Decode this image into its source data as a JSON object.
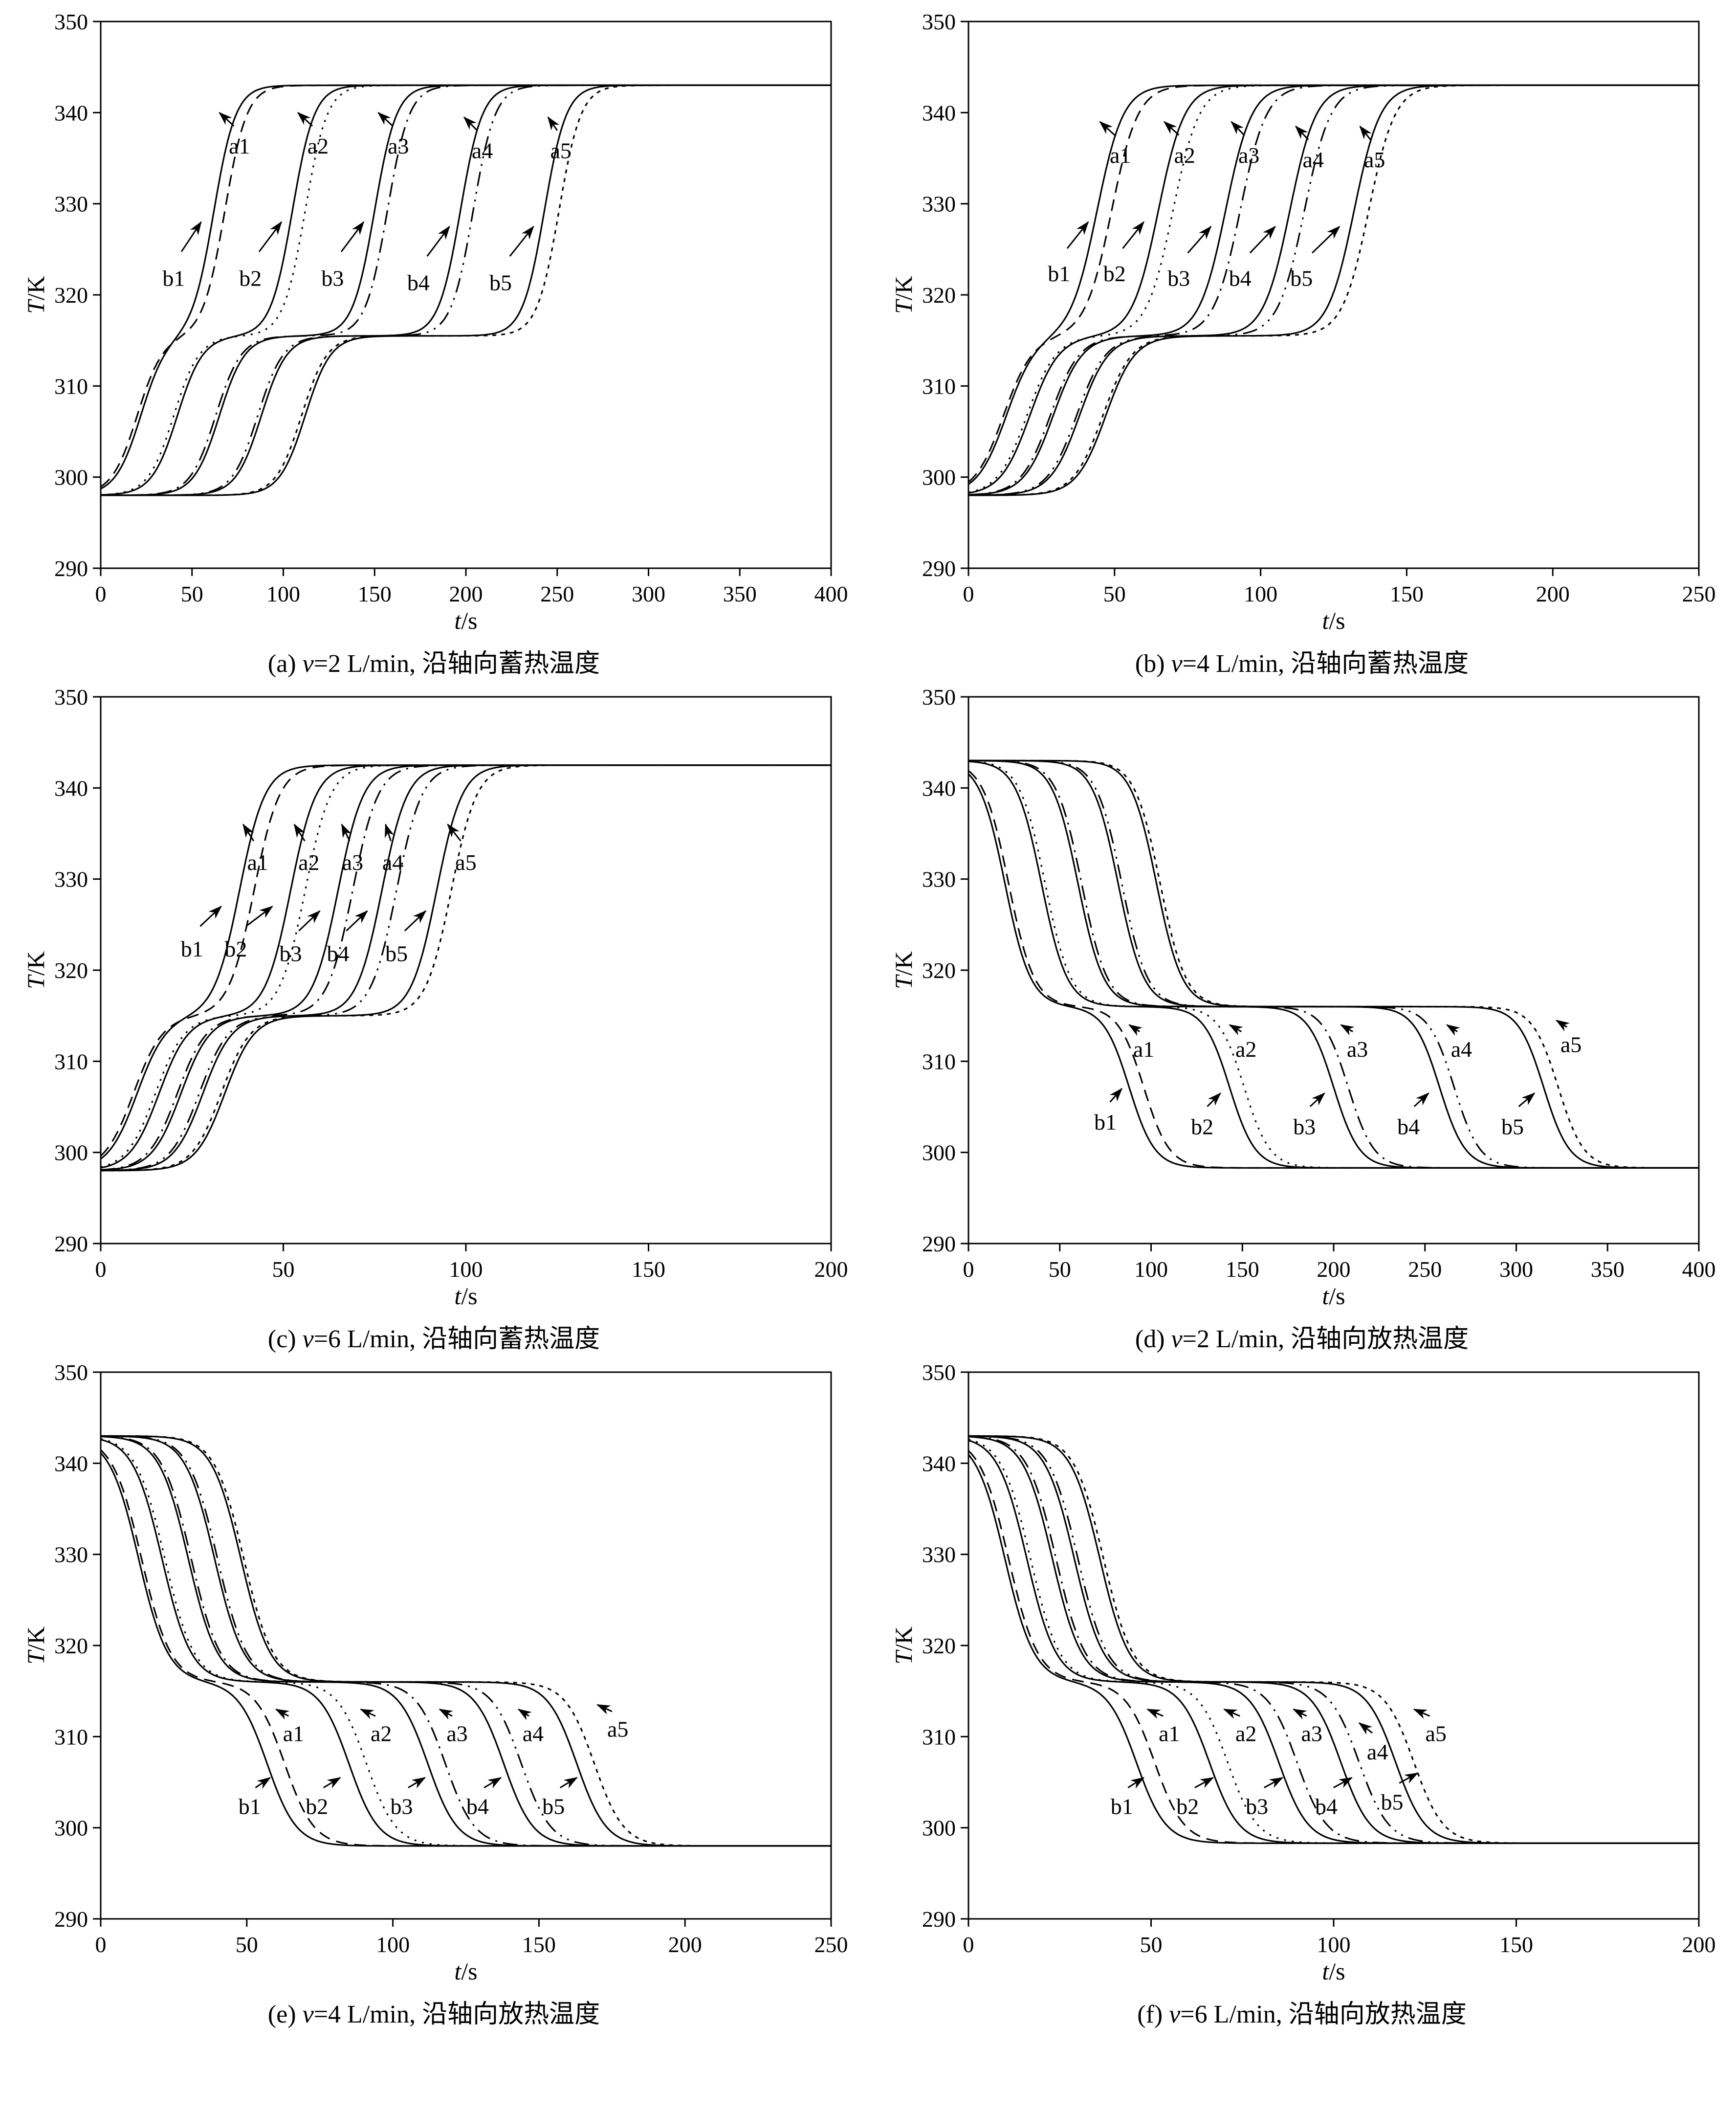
{
  "figure": {
    "background": "#ffffff",
    "line_color": "#000000"
  },
  "chart_data": [
    {
      "type": "line",
      "id": "a",
      "caption_label": "(a) ",
      "caption_var": "v",
      "caption_rest": "=2 L/min, 沿轴向蓄热温度",
      "xlabel_var": "t",
      "xlabel_unit": "/s",
      "ylabel_var": "T",
      "ylabel_unit": "/K",
      "xlim": [
        0,
        400
      ],
      "xstep": 50,
      "ylim": [
        290,
        350
      ],
      "ystep": 10,
      "mode": "charge",
      "levels": {
        "base": 298,
        "plateau": 315.5,
        "top": 343
      },
      "w1": 7,
      "w2": 6,
      "curves": [
        {
          "name": "a1",
          "c1": 22,
          "c2": 62,
          "dash": ""
        },
        {
          "name": "b1",
          "c1": 20,
          "c2": 68,
          "dash": "24 14"
        },
        {
          "name": "a2",
          "c1": 42,
          "c2": 105,
          "dash": ""
        },
        {
          "name": "b2",
          "c1": 40,
          "c2": 112,
          "dash": "4 12"
        },
        {
          "name": "a3",
          "c1": 65,
          "c2": 150,
          "dash": ""
        },
        {
          "name": "b3",
          "c1": 63,
          "c2": 157,
          "dash": "30 12 4 12"
        },
        {
          "name": "a4",
          "c1": 88,
          "c2": 197,
          "dash": ""
        },
        {
          "name": "b4",
          "c1": 86,
          "c2": 204,
          "dash": "30 12 4 12 4 12"
        },
        {
          "name": "a5",
          "c1": 112,
          "c2": 243,
          "dash": ""
        },
        {
          "name": "b5",
          "c1": 110,
          "c2": 251,
          "dash": "8 10"
        }
      ],
      "annotations": [
        {
          "text": "a1",
          "lx": 76,
          "ly": 335.5,
          "tx": 65,
          "ty": 340
        },
        {
          "text": "a2",
          "lx": 119,
          "ly": 335.5,
          "tx": 108,
          "ty": 340
        },
        {
          "text": "a3",
          "lx": 163,
          "ly": 335.5,
          "tx": 152,
          "ty": 340
        },
        {
          "text": "a4",
          "lx": 209,
          "ly": 335,
          "tx": 199,
          "ty": 339.5
        },
        {
          "text": "a5",
          "lx": 252,
          "ly": 335,
          "tx": 245,
          "ty": 339.5
        },
        {
          "text": "b1",
          "lx": 40,
          "ly": 321,
          "tx": 55,
          "ty": 328
        },
        {
          "text": "b2",
          "lx": 82,
          "ly": 321,
          "tx": 99,
          "ty": 328
        },
        {
          "text": "b3",
          "lx": 127,
          "ly": 321,
          "tx": 144,
          "ty": 328
        },
        {
          "text": "b4",
          "lx": 174,
          "ly": 320.5,
          "tx": 191,
          "ty": 327.5
        },
        {
          "text": "b5",
          "lx": 219,
          "ly": 320.5,
          "tx": 237,
          "ty": 327.5
        }
      ]
    },
    {
      "type": "line",
      "id": "b",
      "caption_label": "(b) ",
      "caption_var": "v",
      "caption_rest": "=4 L/min, 沿轴向蓄热温度",
      "xlabel_var": "t",
      "xlabel_unit": "/s",
      "ylabel_var": "T",
      "ylabel_unit": "/K",
      "xlim": [
        0,
        250
      ],
      "xstep": 50,
      "ylim": [
        290,
        350
      ],
      "ystep": 10,
      "mode": "charge",
      "levels": {
        "base": 298,
        "plateau": 315.5,
        "top": 343
      },
      "w1": 5,
      "w2": 4.5,
      "curves": [
        {
          "name": "a1",
          "c1": 13,
          "c2": 44,
          "dash": ""
        },
        {
          "name": "b1",
          "c1": 12,
          "c2": 49,
          "dash": "24 14"
        },
        {
          "name": "a2",
          "c1": 21,
          "c2": 65,
          "dash": ""
        },
        {
          "name": "b2",
          "c1": 20,
          "c2": 70,
          "dash": "4 12"
        },
        {
          "name": "a3",
          "c1": 29,
          "c2": 88,
          "dash": ""
        },
        {
          "name": "b3",
          "c1": 28,
          "c2": 93,
          "dash": "30 12 4 12"
        },
        {
          "name": "a4",
          "c1": 38,
          "c2": 110,
          "dash": ""
        },
        {
          "name": "b4",
          "c1": 37,
          "c2": 115,
          "dash": "30 12 4 12 4 12"
        },
        {
          "name": "a5",
          "c1": 47,
          "c2": 132,
          "dash": ""
        },
        {
          "name": "b5",
          "c1": 46,
          "c2": 137,
          "dash": "8 10"
        }
      ],
      "annotations": [
        {
          "text": "a1",
          "lx": 52,
          "ly": 334.5,
          "tx": 45,
          "ty": 339
        },
        {
          "text": "a2",
          "lx": 74,
          "ly": 334.5,
          "tx": 67,
          "ty": 339
        },
        {
          "text": "a3",
          "lx": 96,
          "ly": 334.5,
          "tx": 90,
          "ty": 339
        },
        {
          "text": "a4",
          "lx": 118,
          "ly": 334,
          "tx": 112,
          "ty": 338.5
        },
        {
          "text": "a5",
          "lx": 139,
          "ly": 334,
          "tx": 134,
          "ty": 338.5
        },
        {
          "text": "b1",
          "lx": 31,
          "ly": 321.5,
          "tx": 41,
          "ty": 328
        },
        {
          "text": "b2",
          "lx": 50,
          "ly": 321.5,
          "tx": 60,
          "ty": 328
        },
        {
          "text": "b3",
          "lx": 72,
          "ly": 321,
          "tx": 83,
          "ty": 327.5
        },
        {
          "text": "b4",
          "lx": 93,
          "ly": 321,
          "tx": 105,
          "ty": 327.5
        },
        {
          "text": "b5",
          "lx": 114,
          "ly": 321,
          "tx": 127,
          "ty": 327.5
        }
      ]
    },
    {
      "type": "line",
      "id": "c",
      "caption_label": "(c) ",
      "caption_var": "v",
      "caption_rest": "=6 L/min, 沿轴向蓄热温度",
      "xlabel_var": "t",
      "xlabel_unit": "/s",
      "ylabel_var": "T",
      "ylabel_unit": "/K",
      "xlim": [
        0,
        200
      ],
      "xstep": 50,
      "ylim": [
        290,
        350
      ],
      "ystep": 10,
      "mode": "charge",
      "levels": {
        "base": 298,
        "plateau": 315,
        "top": 342.5
      },
      "w1": 4,
      "w2": 3.5,
      "curves": [
        {
          "name": "a1",
          "c1": 10,
          "c2": 38,
          "dash": ""
        },
        {
          "name": "b1",
          "c1": 9,
          "c2": 42,
          "dash": "24 14"
        },
        {
          "name": "a2",
          "c1": 16,
          "c2": 52,
          "dash": ""
        },
        {
          "name": "b2",
          "c1": 15,
          "c2": 56,
          "dash": "4 12"
        },
        {
          "name": "a3",
          "c1": 22,
          "c2": 65,
          "dash": ""
        },
        {
          "name": "b3",
          "c1": 21,
          "c2": 69,
          "dash": "30 12 4 12"
        },
        {
          "name": "a4",
          "c1": 28,
          "c2": 77,
          "dash": ""
        },
        {
          "name": "b4",
          "c1": 27,
          "c2": 81,
          "dash": "30 12 4 12 4 12"
        },
        {
          "name": "a5",
          "c1": 34,
          "c2": 92,
          "dash": ""
        },
        {
          "name": "b5",
          "c1": 33,
          "c2": 96,
          "dash": "8 10"
        }
      ],
      "annotations": [
        {
          "text": "a1",
          "lx": 43,
          "ly": 331,
          "tx": 39,
          "ty": 336
        },
        {
          "text": "a2",
          "lx": 57,
          "ly": 331,
          "tx": 53,
          "ty": 336
        },
        {
          "text": "a3",
          "lx": 69,
          "ly": 331,
          "tx": 66,
          "ty": 336
        },
        {
          "text": "a4",
          "lx": 80,
          "ly": 331,
          "tx": 78,
          "ty": 336
        },
        {
          "text": "a5",
          "lx": 100,
          "ly": 331,
          "tx": 95,
          "ty": 336
        },
        {
          "text": "b1",
          "lx": 25,
          "ly": 321.5,
          "tx": 33,
          "ty": 327
        },
        {
          "text": "b2",
          "lx": 37,
          "ly": 321.5,
          "tx": 47,
          "ty": 327
        },
        {
          "text": "b3",
          "lx": 52,
          "ly": 321,
          "tx": 60,
          "ty": 326.5
        },
        {
          "text": "b4",
          "lx": 65,
          "ly": 321,
          "tx": 73,
          "ty": 326.5
        },
        {
          "text": "b5",
          "lx": 81,
          "ly": 321,
          "tx": 89,
          "ty": 326.5
        }
      ]
    },
    {
      "type": "line",
      "id": "d",
      "caption_label": "(d) ",
      "caption_var": "v",
      "caption_rest": "=2 L/min, 沿轴向放热温度",
      "xlabel_var": "t",
      "xlabel_unit": "/s",
      "ylabel_var": "T",
      "ylabel_unit": "/K",
      "xlim": [
        0,
        400
      ],
      "xstep": 50,
      "ylim": [
        290,
        350
      ],
      "ystep": 10,
      "mode": "discharge",
      "levels": {
        "base": 298.3,
        "plateau": 316,
        "top": 343
      },
      "w1": 7,
      "w2": 7,
      "curves": [
        {
          "name": "a1",
          "c1": 20,
          "c2": 88,
          "dash": ""
        },
        {
          "name": "b1",
          "c1": 22,
          "c2": 96,
          "dash": "24 14"
        },
        {
          "name": "a2",
          "c1": 40,
          "c2": 143,
          "dash": ""
        },
        {
          "name": "b2",
          "c1": 42,
          "c2": 151,
          "dash": "4 12"
        },
        {
          "name": "a3",
          "c1": 60,
          "c2": 200,
          "dash": ""
        },
        {
          "name": "b3",
          "c1": 62,
          "c2": 208,
          "dash": "30 12 4 12"
        },
        {
          "name": "a4",
          "c1": 82,
          "c2": 258,
          "dash": ""
        },
        {
          "name": "b4",
          "c1": 84,
          "c2": 266,
          "dash": "30 12 4 12 4 12"
        },
        {
          "name": "a5",
          "c1": 103,
          "c2": 315,
          "dash": ""
        },
        {
          "name": "b5",
          "c1": 105,
          "c2": 323,
          "dash": "8 10"
        }
      ],
      "annotations": [
        {
          "text": "a1",
          "lx": 96,
          "ly": 310.5,
          "tx": 88,
          "ty": 314
        },
        {
          "text": "a2",
          "lx": 152,
          "ly": 310.5,
          "tx": 143,
          "ty": 314
        },
        {
          "text": "a3",
          "lx": 213,
          "ly": 310.5,
          "tx": 204,
          "ty": 314
        },
        {
          "text": "a4",
          "lx": 270,
          "ly": 310.5,
          "tx": 262,
          "ty": 314
        },
        {
          "text": "a5",
          "lx": 330,
          "ly": 311,
          "tx": 322,
          "ty": 314.5
        },
        {
          "text": "b1",
          "lx": 75,
          "ly": 302.5,
          "tx": 84,
          "ty": 307
        },
        {
          "text": "b2",
          "lx": 128,
          "ly": 302,
          "tx": 138,
          "ty": 306.5
        },
        {
          "text": "b3",
          "lx": 184,
          "ly": 302,
          "tx": 195,
          "ty": 306.5
        },
        {
          "text": "b4",
          "lx": 241,
          "ly": 302,
          "tx": 252,
          "ty": 306.5
        },
        {
          "text": "b5",
          "lx": 298,
          "ly": 302,
          "tx": 310,
          "ty": 306.5
        }
      ]
    },
    {
      "type": "line",
      "id": "e",
      "caption_label": "(e) ",
      "caption_var": "v",
      "caption_rest": "=4 L/min, 沿轴向放热温度",
      "xlabel_var": "t",
      "xlabel_unit": "/s",
      "ylabel_var": "T",
      "ylabel_unit": "/K",
      "xlim": [
        0,
        250
      ],
      "xstep": 50,
      "ylim": [
        290,
        350
      ],
      "ystep": 10,
      "mode": "discharge",
      "levels": {
        "base": 298,
        "plateau": 316,
        "top": 343
      },
      "w1": 5,
      "w2": 5,
      "curves": [
        {
          "name": "a1",
          "c1": 13,
          "c2": 57,
          "dash": ""
        },
        {
          "name": "b1",
          "c1": 14,
          "c2": 63,
          "dash": "24 14"
        },
        {
          "name": "a2",
          "c1": 21,
          "c2": 85,
          "dash": ""
        },
        {
          "name": "b2",
          "c1": 22,
          "c2": 91,
          "dash": "4 12"
        },
        {
          "name": "a3",
          "c1": 30,
          "c2": 112,
          "dash": ""
        },
        {
          "name": "b3",
          "c1": 31,
          "c2": 118,
          "dash": "30 12 4 12"
        },
        {
          "name": "a4",
          "c1": 39,
          "c2": 138,
          "dash": ""
        },
        {
          "name": "b4",
          "c1": 40,
          "c2": 144,
          "dash": "30 12 4 12 4 12"
        },
        {
          "name": "a5",
          "c1": 48,
          "c2": 163,
          "dash": ""
        },
        {
          "name": "b5",
          "c1": 49,
          "c2": 169,
          "dash": "8 10"
        }
      ],
      "annotations": [
        {
          "text": "a1",
          "lx": 66,
          "ly": 309.5,
          "tx": 60,
          "ty": 313
        },
        {
          "text": "a2",
          "lx": 96,
          "ly": 309.5,
          "tx": 89,
          "ty": 313
        },
        {
          "text": "a3",
          "lx": 122,
          "ly": 309.5,
          "tx": 116,
          "ty": 313
        },
        {
          "text": "a4",
          "lx": 148,
          "ly": 309.5,
          "tx": 143,
          "ty": 313
        },
        {
          "text": "a5",
          "lx": 177,
          "ly": 310,
          "tx": 170,
          "ty": 313.5
        },
        {
          "text": "b1",
          "lx": 51,
          "ly": 301.5,
          "tx": 58,
          "ty": 305.5
        },
        {
          "text": "b2",
          "lx": 74,
          "ly": 301.5,
          "tx": 82,
          "ty": 305.5
        },
        {
          "text": "b3",
          "lx": 103,
          "ly": 301.5,
          "tx": 111,
          "ty": 305.5
        },
        {
          "text": "b4",
          "lx": 129,
          "ly": 301.5,
          "tx": 137,
          "ty": 305.5
        },
        {
          "text": "b5",
          "lx": 155,
          "ly": 301.5,
          "tx": 163,
          "ty": 305.5
        }
      ]
    },
    {
      "type": "line",
      "id": "f",
      "caption_label": "(f) ",
      "caption_var": "v",
      "caption_rest": "=6 L/min, 沿轴向放热温度",
      "xlabel_var": "t",
      "xlabel_unit": "/s",
      "ylabel_var": "T",
      "ylabel_unit": "/K",
      "xlim": [
        0,
        200
      ],
      "xstep": 50,
      "ylim": [
        290,
        350
      ],
      "ystep": 10,
      "mode": "discharge",
      "levels": {
        "base": 298.3,
        "plateau": 316,
        "top": 343
      },
      "w1": 4,
      "w2": 4,
      "curves": [
        {
          "name": "a1",
          "c1": 10,
          "c2": 46,
          "dash": ""
        },
        {
          "name": "b1",
          "c1": 11,
          "c2": 51,
          "dash": "24 14"
        },
        {
          "name": "a2",
          "c1": 16,
          "c2": 66,
          "dash": ""
        },
        {
          "name": "b2",
          "c1": 17,
          "c2": 71,
          "dash": "4 12"
        },
        {
          "name": "a3",
          "c1": 23,
          "c2": 85,
          "dash": ""
        },
        {
          "name": "b3",
          "c1": 24,
          "c2": 90,
          "dash": "30 12 4 12"
        },
        {
          "name": "a4",
          "c1": 29,
          "c2": 102,
          "dash": ""
        },
        {
          "name": "b4",
          "c1": 30,
          "c2": 107,
          "dash": "30 12 4 12 4 12"
        },
        {
          "name": "a5",
          "c1": 36,
          "c2": 117,
          "dash": ""
        },
        {
          "name": "b5",
          "c1": 37,
          "c2": 122,
          "dash": "8 10"
        }
      ],
      "annotations": [
        {
          "text": "a1",
          "lx": 55,
          "ly": 309.5,
          "tx": 49,
          "ty": 313
        },
        {
          "text": "a2",
          "lx": 76,
          "ly": 309.5,
          "tx": 70,
          "ty": 313
        },
        {
          "text": "a3",
          "lx": 94,
          "ly": 309.5,
          "tx": 89,
          "ty": 313
        },
        {
          "text": "a4",
          "lx": 112,
          "ly": 307.5,
          "tx": 107,
          "ty": 311.5
        },
        {
          "text": "a5",
          "lx": 128,
          "ly": 309.5,
          "tx": 122,
          "ty": 313
        },
        {
          "text": "b1",
          "lx": 42,
          "ly": 301.5,
          "tx": 48,
          "ty": 305.5
        },
        {
          "text": "b2",
          "lx": 60,
          "ly": 301.5,
          "tx": 67,
          "ty": 305.5
        },
        {
          "text": "b3",
          "lx": 79,
          "ly": 301.5,
          "tx": 86,
          "ty": 305.5
        },
        {
          "text": "b4",
          "lx": 98,
          "ly": 301.5,
          "tx": 105,
          "ty": 305.5
        },
        {
          "text": "b5",
          "lx": 116,
          "ly": 302,
          "tx": 123,
          "ty": 306
        }
      ]
    }
  ]
}
